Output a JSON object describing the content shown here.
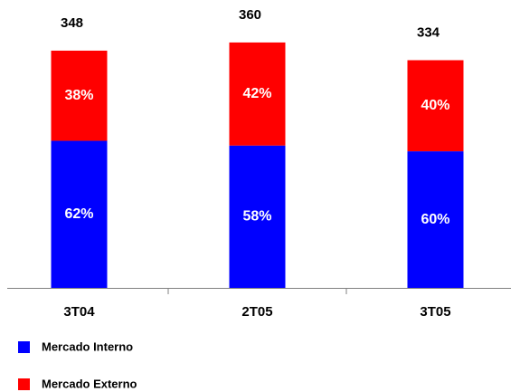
{
  "chart_data": {
    "type": "stacked_percent_bar",
    "categories": [
      "3T04",
      "2T05",
      "3T05"
    ],
    "totals": [
      348,
      360,
      334
    ],
    "series": [
      {
        "name": "Mercado Interno",
        "color": "#0000ff",
        "values": [
          62,
          58,
          60
        ],
        "value_labels": [
          "62%",
          "58%",
          "60%"
        ]
      },
      {
        "name": "Mercado Externo",
        "color": "#ff0000",
        "values": [
          38,
          42,
          40
        ],
        "value_labels": [
          "38%",
          "42%",
          "40%"
        ]
      }
    ]
  }
}
